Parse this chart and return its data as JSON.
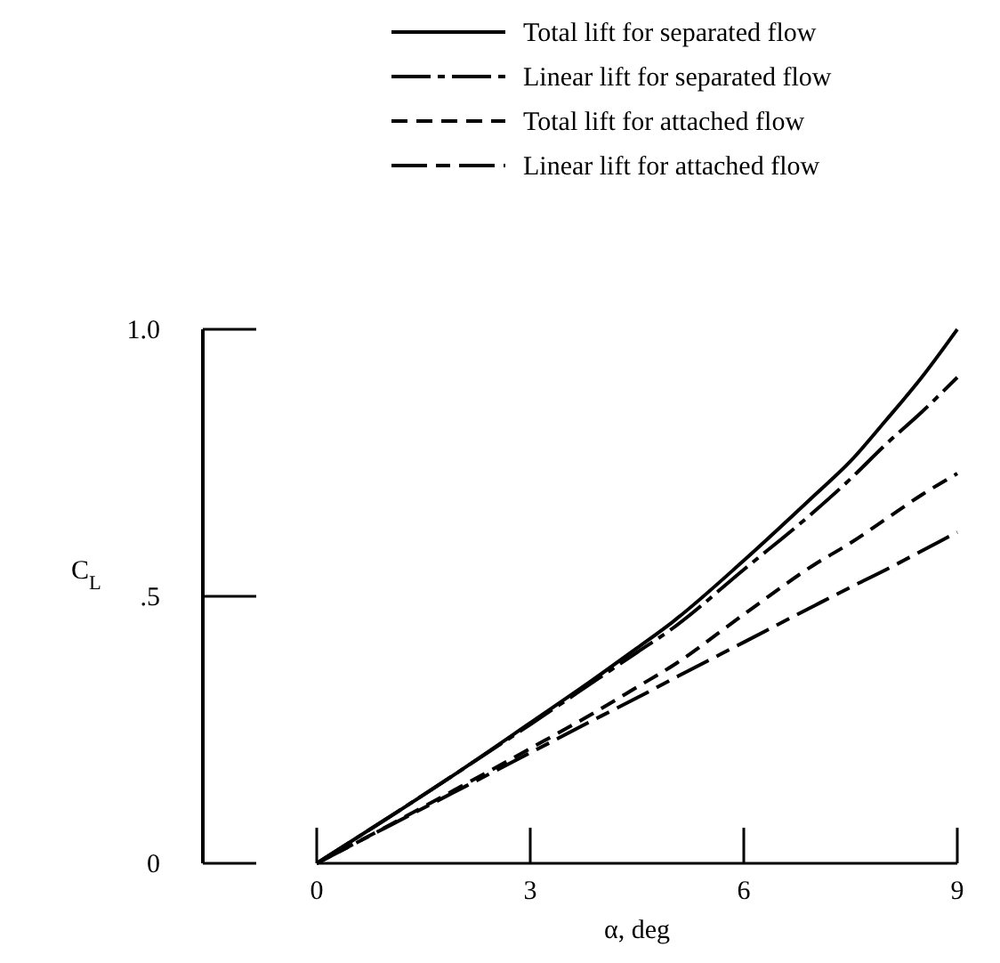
{
  "chart_data": {
    "type": "line",
    "xlabel": "α, deg",
    "ylabel": "C$_{L}$",
    "xlim": [
      0,
      9
    ],
    "ylim": [
      0,
      1
    ],
    "xticks": [
      0,
      3,
      6,
      9
    ],
    "yticks": [
      {
        "value": 0,
        "label": "0"
      },
      {
        "value": 0.5,
        "label": ".5"
      },
      {
        "value": 1,
        "label": "1.0"
      }
    ],
    "legend": "top",
    "grid": false,
    "marker": "none",
    "x": [
      0,
      1,
      2,
      3,
      4,
      4.5,
      5,
      6,
      7,
      7.5,
      8,
      8.5,
      9
    ],
    "series": [
      {
        "name": "Total lift for separated flow",
        "color": "#000000",
        "line_style": "solid",
        "values": [
          0,
          0.085,
          0.172,
          0.263,
          0.355,
          0.403,
          0.452,
          0.567,
          0.69,
          0.753,
          0.83,
          0.91,
          1.0
        ]
      },
      {
        "name": "Linear lift for separated flow",
        "color": "#000000",
        "line_style": "dashdot",
        "values": [
          0,
          0.085,
          0.172,
          0.26,
          0.35,
          0.395,
          0.44,
          0.55,
          0.66,
          0.72,
          0.785,
          0.845,
          0.91
        ]
      },
      {
        "name": "Total lift for attached flow",
        "color": "#000000",
        "line_style": "dashed",
        "values": [
          0,
          0.07,
          0.142,
          0.215,
          0.29,
          0.33,
          0.37,
          0.466,
          0.56,
          0.6,
          0.645,
          0.69,
          0.73
        ]
      },
      {
        "name": "Linear lift for attached flow",
        "color": "#000000",
        "line_style": "longdash",
        "values": [
          0,
          0.069,
          0.138,
          0.207,
          0.276,
          0.31,
          0.345,
          0.414,
          0.483,
          0.517,
          0.55,
          0.585,
          0.62
        ]
      }
    ]
  }
}
